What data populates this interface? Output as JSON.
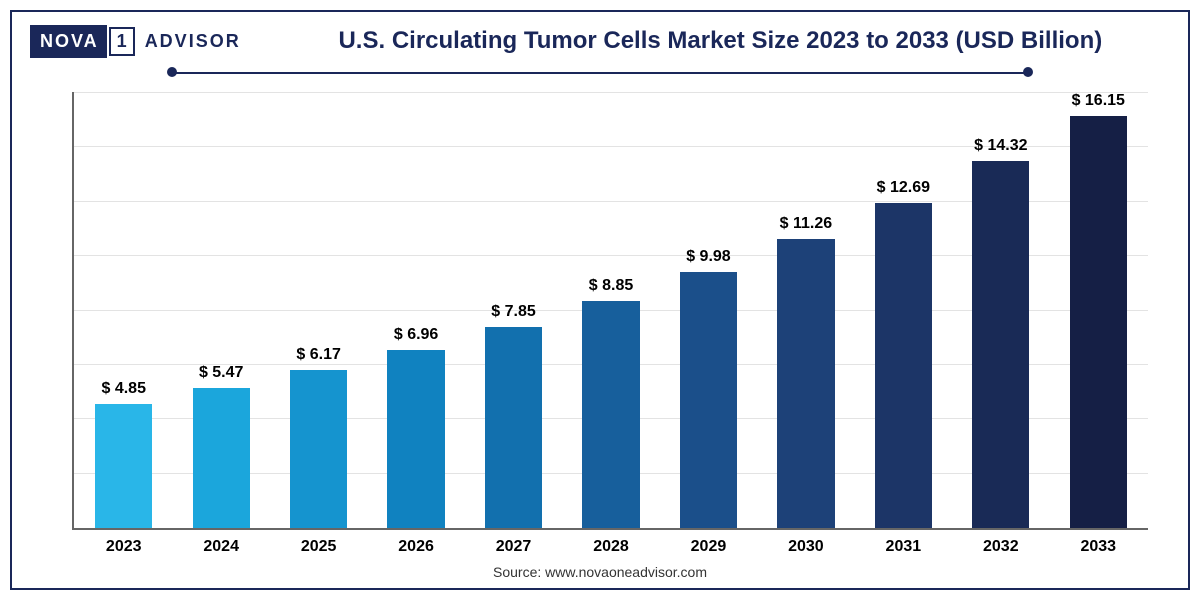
{
  "logo": {
    "part1": "NOVA",
    "part2": "1",
    "part3": "ADVISOR"
  },
  "title": "U.S. Circulating Tumor Cells Market Size 2023 to 2033 (USD Billion)",
  "source": "Source: www.novaoneadvisor.com",
  "chart": {
    "type": "bar",
    "ylim": [
      0,
      17
    ],
    "grid_count": 9,
    "grid_color": "#e3e3e3",
    "axis_color": "#666666",
    "background_color": "#ffffff",
    "label_fontsize": 16,
    "label_fontweight": 700,
    "label_color": "#000000",
    "categories": [
      "2023",
      "2024",
      "2025",
      "2026",
      "2027",
      "2028",
      "2029",
      "2030",
      "2031",
      "2032",
      "2033"
    ],
    "display_values": [
      "$ 4.85",
      "$ 5.47",
      "$ 6.17",
      "$ 6.96",
      "$ 7.85",
      "$ 8.85",
      "$ 9.98",
      "$ 11.26",
      "$ 12.69",
      "$ 14.32",
      "$ 16.15"
    ],
    "values": [
      4.85,
      5.47,
      6.17,
      6.96,
      7.85,
      8.85,
      9.98,
      11.26,
      12.69,
      14.32,
      16.15
    ],
    "bar_colors": [
      "#29b6e8",
      "#1ba6dc",
      "#1594cf",
      "#1082c0",
      "#1270ae",
      "#175f9c",
      "#1b4f8a",
      "#1d4178",
      "#1c3567",
      "#192a56",
      "#151f45"
    ],
    "bar_width": 0.72
  },
  "frame_border_color": "#1a2759",
  "title_color": "#1a2759",
  "title_fontsize": 24
}
